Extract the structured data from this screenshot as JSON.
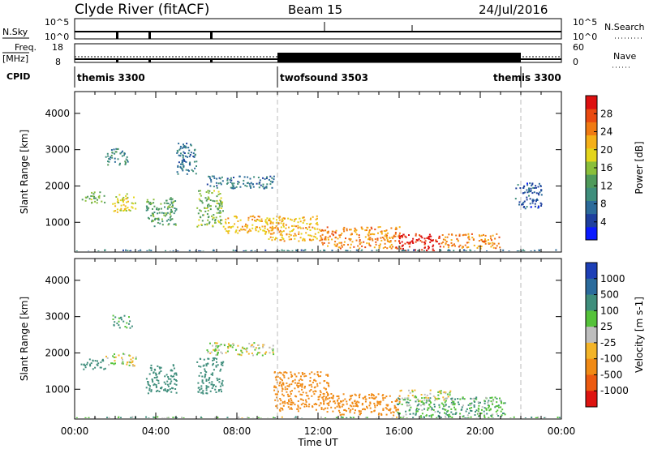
{
  "header": {
    "station": "Clyde River (fitACF)",
    "beam": "Beam 15",
    "date": "24/Jul/2016"
  },
  "nsky_panel": {
    "left_label": "N.Sky",
    "right_label": "N.Search",
    "left_ticks": [
      "10^5",
      "10^0"
    ],
    "right_ticks": [
      "10^5",
      "10^0"
    ]
  },
  "freq_panel": {
    "left_label": "Freq.",
    "left_unit": "[MHz]",
    "right_label": "Nave",
    "left_ticks": [
      "18",
      "8"
    ],
    "right_ticks": [
      "60",
      "0"
    ]
  },
  "cpid_panel": {
    "label": "CPID",
    "modes": [
      {
        "name": "themis 3300",
        "start_h": 0,
        "end_h": 10
      },
      {
        "name": "twofsound 3503",
        "start_h": 10,
        "end_h": 22
      },
      {
        "name": "themis 3300",
        "start_h": 22,
        "end_h": 24
      }
    ]
  },
  "chart_data": [
    {
      "type": "heatmap",
      "name": "power",
      "xlabel": "Time UT",
      "ylabel": "Slant Range [km]",
      "xlim": [
        0,
        24
      ],
      "ylim": [
        180,
        4600
      ],
      "yticks": [
        1000,
        2000,
        3000,
        4000
      ],
      "colorbar": {
        "label": "Power [dB]",
        "ticks": [
          "4",
          "8",
          "12",
          "16",
          "20",
          "24",
          "28"
        ],
        "colors": [
          "#0a1aff",
          "#1e3f9e",
          "#2c6b9a",
          "#3f8e7c",
          "#4f9a5a",
          "#8abf3a",
          "#e4d51c",
          "#f5b018",
          "#f07a12",
          "#ea4a10",
          "#dd1010"
        ]
      },
      "blobs": [
        {
          "t0": 0.3,
          "t1": 1.5,
          "r0": 1550,
          "r1": 1850,
          "level": 14
        },
        {
          "t0": 1.5,
          "t1": 2.6,
          "r0": 2600,
          "r1": 3050,
          "level": 10
        },
        {
          "t0": 1.8,
          "t1": 3.0,
          "r0": 1300,
          "r1": 1800,
          "level": 18
        },
        {
          "t0": 3.5,
          "t1": 5.0,
          "r0": 900,
          "r1": 1700,
          "level": 12
        },
        {
          "t0": 5.0,
          "t1": 6.0,
          "r0": 2300,
          "r1": 3200,
          "level": 8
        },
        {
          "t0": 6.0,
          "t1": 7.3,
          "r0": 900,
          "r1": 1900,
          "level": 14
        },
        {
          "t0": 6.5,
          "t1": 9.8,
          "r0": 1950,
          "r1": 2300,
          "level": 8
        },
        {
          "t0": 7.3,
          "t1": 9.8,
          "r0": 700,
          "r1": 1200,
          "level": 20
        },
        {
          "t0": 9.5,
          "t1": 12.0,
          "r0": 500,
          "r1": 1200,
          "level": 20
        },
        {
          "t0": 12.0,
          "t1": 16.0,
          "r0": 300,
          "r1": 900,
          "level": 22
        },
        {
          "t0": 15.8,
          "t1": 18.0,
          "r0": 220,
          "r1": 700,
          "level": 28
        },
        {
          "t0": 18.0,
          "t1": 21.0,
          "r0": 300,
          "r1": 700,
          "level": 22
        },
        {
          "t0": 21.7,
          "t1": 23.0,
          "r0": 1400,
          "r1": 2100,
          "level": 6
        },
        {
          "t0": 0.0,
          "t1": 24.0,
          "r0": 190,
          "r1": 260,
          "level": 8
        }
      ]
    },
    {
      "type": "heatmap",
      "name": "velocity",
      "xlabel": "Time UT",
      "ylabel": "Slant Range [km]",
      "xlim": [
        0,
        24
      ],
      "ylim": [
        180,
        4600
      ],
      "yticks": [
        1000,
        2000,
        3000,
        4000
      ],
      "xticks": [
        "00:00",
        "04:00",
        "08:00",
        "12:00",
        "16:00",
        "20:00",
        "00:00"
      ],
      "colorbar": {
        "label": "Velocity [m s-1]",
        "ticks": [
          "1000",
          "500",
          "100",
          "25",
          "-25",
          "-100",
          "-500",
          "-1000"
        ],
        "colors": [
          "#1d3fb6",
          "#2b6b9c",
          "#3f8e7c",
          "#55c23a",
          "#bebebe",
          "#f3b428",
          "#f08a15",
          "#ec5a10",
          "#de1410"
        ]
      },
      "blobs": [
        {
          "t0": 0.3,
          "t1": 1.5,
          "r0": 1550,
          "r1": 1850,
          "vel": 300
        },
        {
          "t0": 1.5,
          "t1": 3.0,
          "r0": 1650,
          "r1": 2000,
          "vel": 0
        },
        {
          "t0": 1.8,
          "t1": 2.8,
          "r0": 2700,
          "r1": 3050,
          "vel": 150
        },
        {
          "t0": 3.5,
          "t1": 5.0,
          "r0": 900,
          "r1": 1700,
          "vel": 250
        },
        {
          "t0": 6.0,
          "t1": 7.3,
          "r0": 900,
          "r1": 1900,
          "vel": 300
        },
        {
          "t0": 6.5,
          "t1": 9.8,
          "r0": 1950,
          "r1": 2300,
          "vel": 0
        },
        {
          "t0": 9.8,
          "t1": 12.5,
          "r0": 400,
          "r1": 1500,
          "vel": -300
        },
        {
          "t0": 12.5,
          "t1": 16.0,
          "r0": 300,
          "r1": 900,
          "vel": -250
        },
        {
          "t0": 15.8,
          "t1": 21.2,
          "r0": 250,
          "r1": 800,
          "vel": 80
        },
        {
          "t0": 16.0,
          "t1": 18.5,
          "r0": 700,
          "r1": 1000,
          "vel": 0
        },
        {
          "t0": 0.0,
          "t1": 24.0,
          "r0": 190,
          "r1": 260,
          "vel": 60
        }
      ]
    }
  ],
  "x_axis": {
    "label": "Time UT",
    "ticks": [
      "00:00",
      "04:00",
      "08:00",
      "12:00",
      "16:00",
      "20:00",
      "00:00"
    ]
  }
}
